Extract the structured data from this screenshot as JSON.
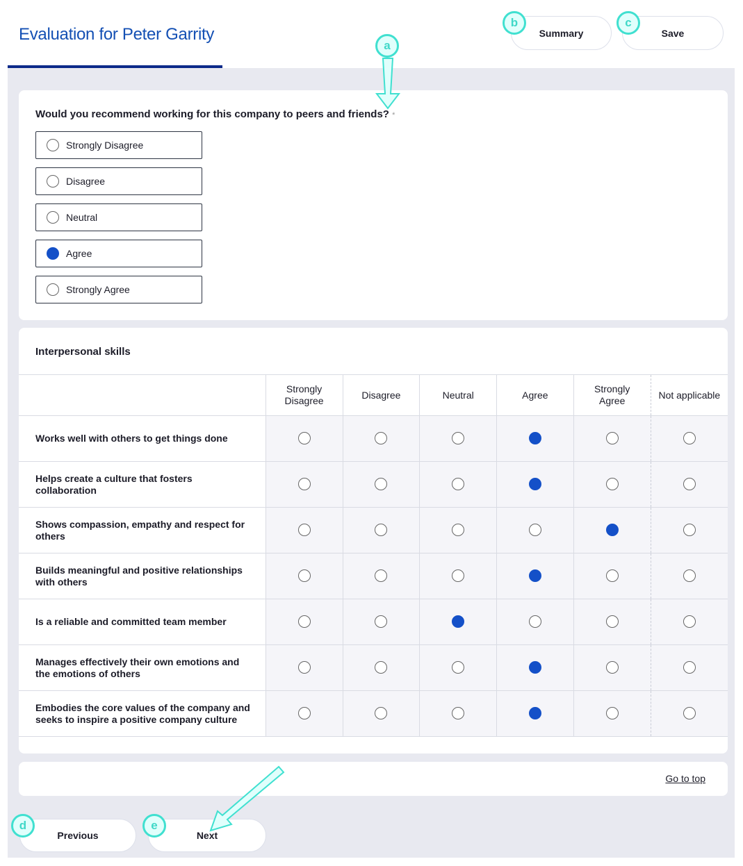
{
  "header": {
    "title": "Evaluation for Peter Garrity",
    "summary_label": "Summary",
    "save_label": "Save"
  },
  "question": {
    "text": "Would you recommend working for this company to peers and friends?",
    "required_mark": "*",
    "options": [
      "Strongly Disagree",
      "Disagree",
      "Neutral",
      "Agree",
      "Strongly Agree"
    ],
    "selected": "Agree"
  },
  "matrix": {
    "title": "Interpersonal skills",
    "columns": [
      "Strongly Disagree",
      "Disagree",
      "Neutral",
      "Agree",
      "Strongly Agree",
      "Not applicable"
    ],
    "rows": [
      {
        "label": "Works well with others to get things done",
        "selected": "Agree"
      },
      {
        "label": "Helps create a culture that fosters collaboration",
        "selected": "Agree"
      },
      {
        "label": "Shows compassion, empathy and respect for others",
        "selected": "Strongly Agree"
      },
      {
        "label": "Builds meaningful and positive relationships with others",
        "selected": "Agree"
      },
      {
        "label": "Is a reliable and committed team member",
        "selected": "Neutral"
      },
      {
        "label": "Manages effectively their own emotions and the emotions of others",
        "selected": "Agree"
      },
      {
        "label": "Embodies the core values of the company and seeks to inspire a positive company culture",
        "selected": "Agree"
      }
    ]
  },
  "footer": {
    "go_to_top": "Go to top",
    "previous_label": "Previous",
    "next_label": "Next"
  },
  "annotations": [
    "a",
    "b",
    "c",
    "d",
    "e"
  ],
  "colors": {
    "accent": "#1450c8",
    "title": "#1450b4",
    "annotation": "#40e0d0"
  }
}
